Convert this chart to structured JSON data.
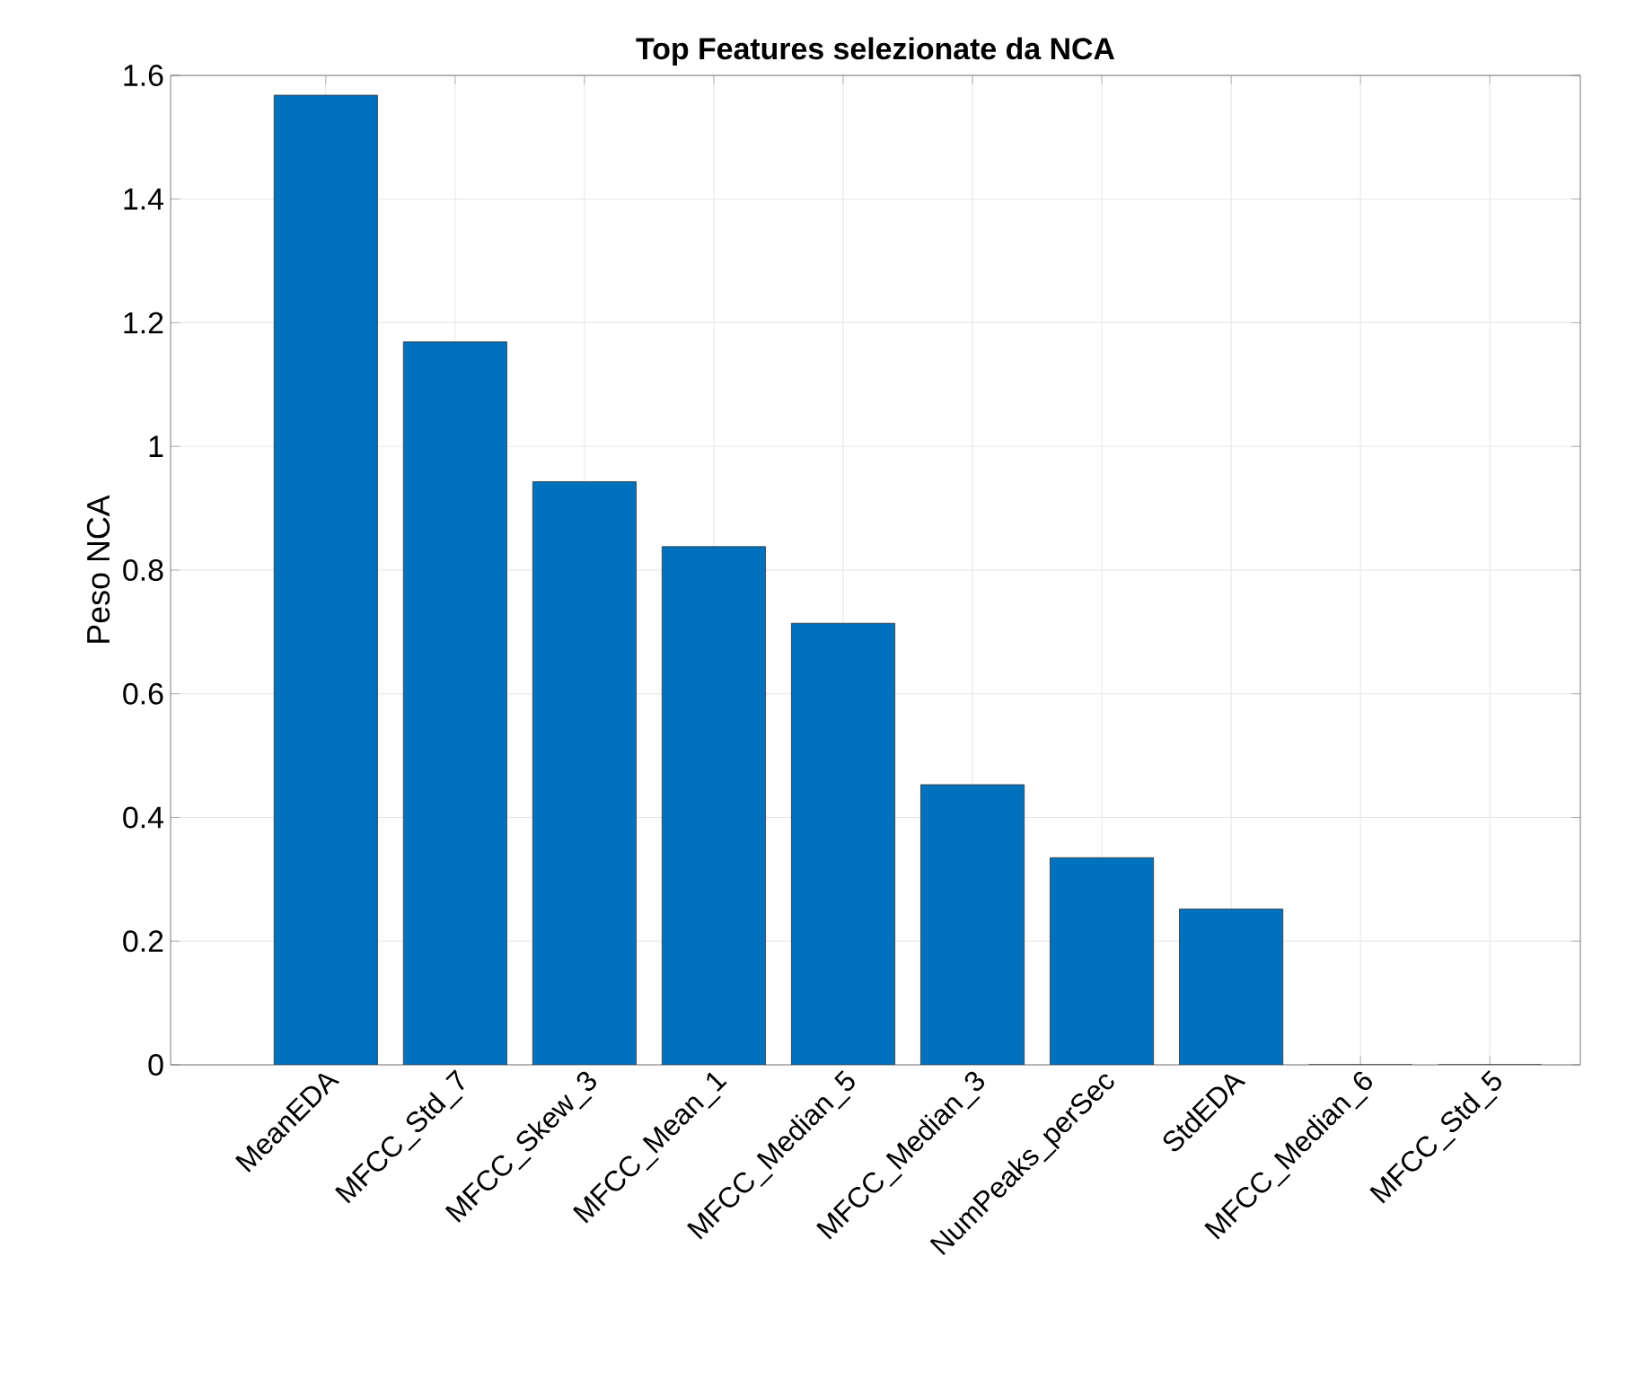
{
  "chart_data": {
    "type": "bar",
    "title": "Top Features selezionate da NCA",
    "ylabel": "Peso NCA",
    "categories": [
      "MeanEDA",
      "MFCC_Std_7",
      "MFCC_Skew_3",
      "MFCC_Mean_1",
      "MFCC_Median_5",
      "MFCC_Median_3",
      "NumPeaks_perSec",
      "StdEDA",
      "MFCC_Median_6",
      "MFCC_Std_5"
    ],
    "values": [
      1.568,
      1.169,
      0.943,
      0.838,
      0.714,
      0.453,
      0.335,
      0.252,
      0,
      0
    ],
    "color": "#0072bd",
    "ylim": [
      0,
      1.6
    ],
    "yticks": [
      0,
      0.2,
      0.4,
      0.6,
      0.8,
      1,
      1.2,
      1.4,
      1.6
    ],
    "grid": true
  }
}
